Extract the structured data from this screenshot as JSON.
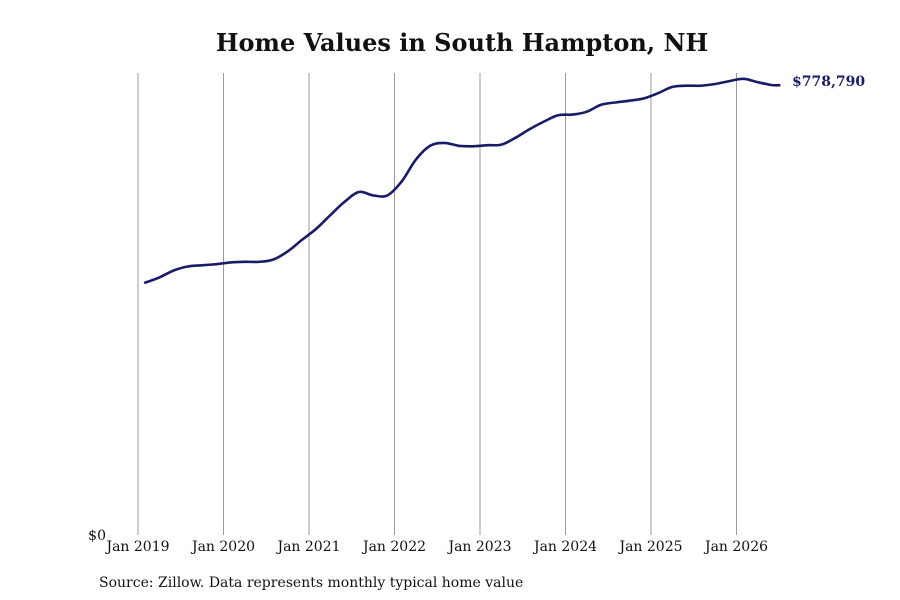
{
  "chart_data": {
    "type": "line",
    "title": "Home Values in South Hampton, NH",
    "xlabel": "",
    "ylabel": "",
    "x_ticks": [
      "Jan 2019",
      "Jan 2020",
      "Jan 2021",
      "Jan 2022",
      "Jan 2023",
      "Jan 2024",
      "Jan 2025",
      "Jan 2026"
    ],
    "y_tick_label": "$0",
    "ylim": [
      0,
      800000
    ],
    "grid": "vertical",
    "line_color": "#1a1a66",
    "end_label": "$778,790",
    "source": "Source: Zillow. Data represents monthly typical home value",
    "series": [
      {
        "x": [
          "2019-02",
          "2019-04",
          "2019-06",
          "2019-08",
          "2019-10",
          "2019-12",
          "2020-02",
          "2020-04",
          "2020-06",
          "2020-08",
          "2020-10",
          "2020-12",
          "2021-02",
          "2021-04",
          "2021-06",
          "2021-08",
          "2021-10",
          "2021-12",
          "2022-02",
          "2022-04",
          "2022-06",
          "2022-08",
          "2022-10",
          "2022-12",
          "2023-02",
          "2023-04",
          "2023-06",
          "2023-08",
          "2023-10",
          "2023-12",
          "2024-02",
          "2024-04",
          "2024-06",
          "2024-08",
          "2024-10",
          "2024-12",
          "2025-02",
          "2025-04",
          "2025-06",
          "2025-08",
          "2025-10",
          "2025-12",
          "2026-02",
          "2026-04",
          "2026-06",
          "2026-07"
        ],
        "values": [
          437000,
          446000,
          458000,
          465000,
          467000,
          469000,
          472000,
          473000,
          473000,
          477000,
          491000,
          511000,
          530000,
          554000,
          577000,
          594000,
          588000,
          588000,
          612000,
          650000,
          674000,
          679000,
          674000,
          673000,
          675000,
          676000,
          688000,
          703000,
          716000,
          727000,
          728000,
          733000,
          745000,
          749000,
          752000,
          756000,
          765000,
          776000,
          778000,
          778000,
          781000,
          786000,
          790000,
          784000,
          779000,
          778790
        ]
      }
    ]
  }
}
